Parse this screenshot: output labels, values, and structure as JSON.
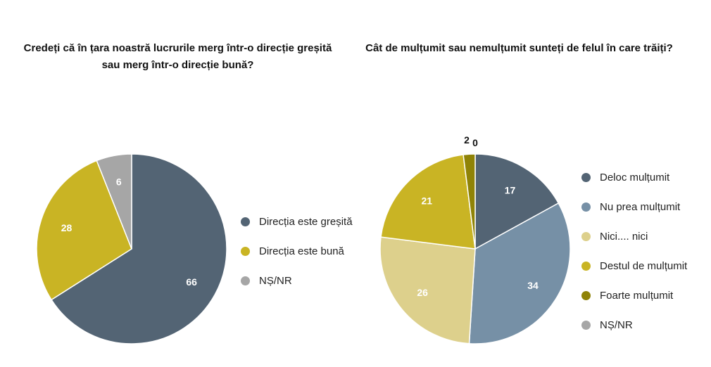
{
  "chart_data": [
    {
      "type": "pie",
      "title": "Credeți că în țara noastră lucrurile merg într-o direcție greșită sau merg într-o direcție bună?",
      "slices": [
        {
          "label": "Direcția este greșită",
          "value": 66,
          "color": "#536474"
        },
        {
          "label": "Direcția este bună",
          "value": 28,
          "color": "#c9b424"
        },
        {
          "label": "NȘ/NR",
          "value": 6,
          "color": "#a6a6a6"
        }
      ],
      "data_labels_shown": true,
      "legend": "right"
    },
    {
      "type": "pie",
      "title": "Cât de mulțumit sau nemulțumit sunteți de felul în care trăiți?",
      "slices": [
        {
          "label": "Deloc mulțumit",
          "value": 17,
          "color": "#536474"
        },
        {
          "label": "Nu prea mulțumit",
          "value": 34,
          "color": "#7690a6"
        },
        {
          "label": "Nici.... nici",
          "value": 26,
          "color": "#ddd08c"
        },
        {
          "label": "Destul de mulțumit",
          "value": 21,
          "color": "#c9b424"
        },
        {
          "label": "Foarte mulțumit",
          "value": 2,
          "color": "#8f8307"
        },
        {
          "label": "NȘ/NR",
          "value": 0,
          "color": "#a6a6a6"
        }
      ],
      "data_labels_shown": true,
      "legend": "right"
    }
  ]
}
